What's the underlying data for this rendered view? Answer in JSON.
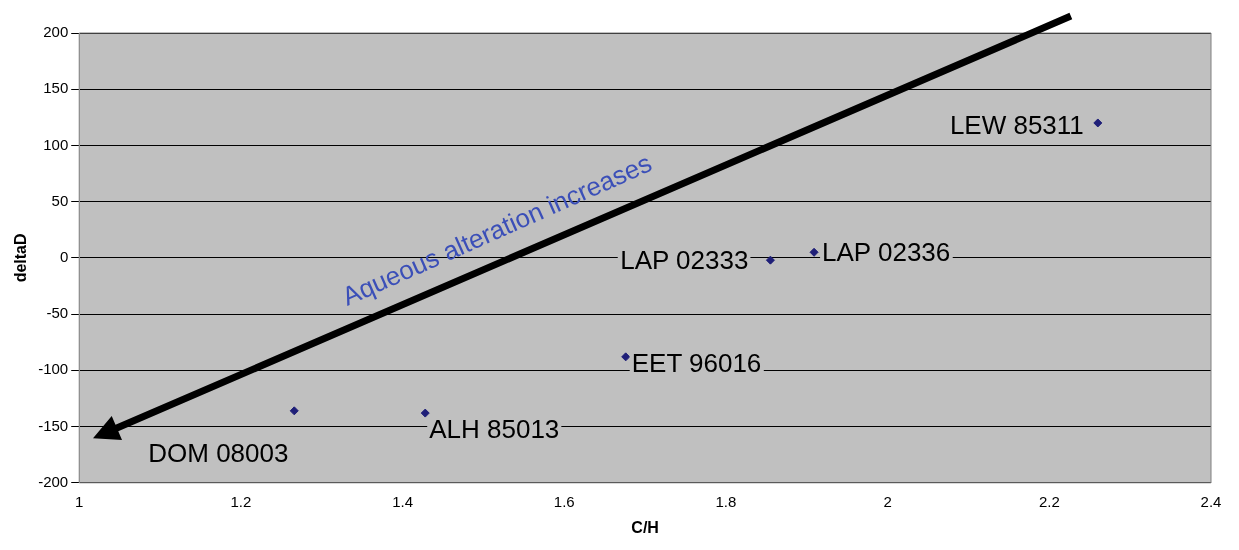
{
  "chart_data": {
    "type": "scatter",
    "xlabel": "C/H",
    "ylabel": "deltaD",
    "x": [
      2.26,
      1.909,
      1.855,
      1.676,
      1.428,
      1.266
    ],
    "values": [
      120,
      5,
      -2,
      -88,
      -138,
      -136
    ],
    "color": "#1f1f78",
    "marker": "diamond",
    "xlim": [
      1,
      2.4
    ],
    "xticks": [
      1,
      1.2,
      1.4,
      1.6,
      1.8,
      2,
      2.2,
      2.4
    ],
    "ylim": [
      -200,
      200
    ],
    "yticks": [
      -200,
      -150,
      -100,
      -50,
      0,
      50,
      100,
      150,
      200
    ],
    "grid": "y",
    "legend": false,
    "annotations": [
      {
        "text": "LEW 85311",
        "x": 2.26,
        "y": 120
      },
      {
        "text": "LAP 02336",
        "x": 1.909,
        "y": 5
      },
      {
        "text": "LAP 02333",
        "x": 1.855,
        "y": -2
      },
      {
        "text": "EET 96016",
        "x": 1.676,
        "y": -88
      },
      {
        "text": "ALH 85013",
        "x": 1.428,
        "y": -138
      },
      {
        "text": "DOM 08003",
        "x": 1.266,
        "y": -136
      },
      "Aqueous alteration increases"
    ]
  }
}
